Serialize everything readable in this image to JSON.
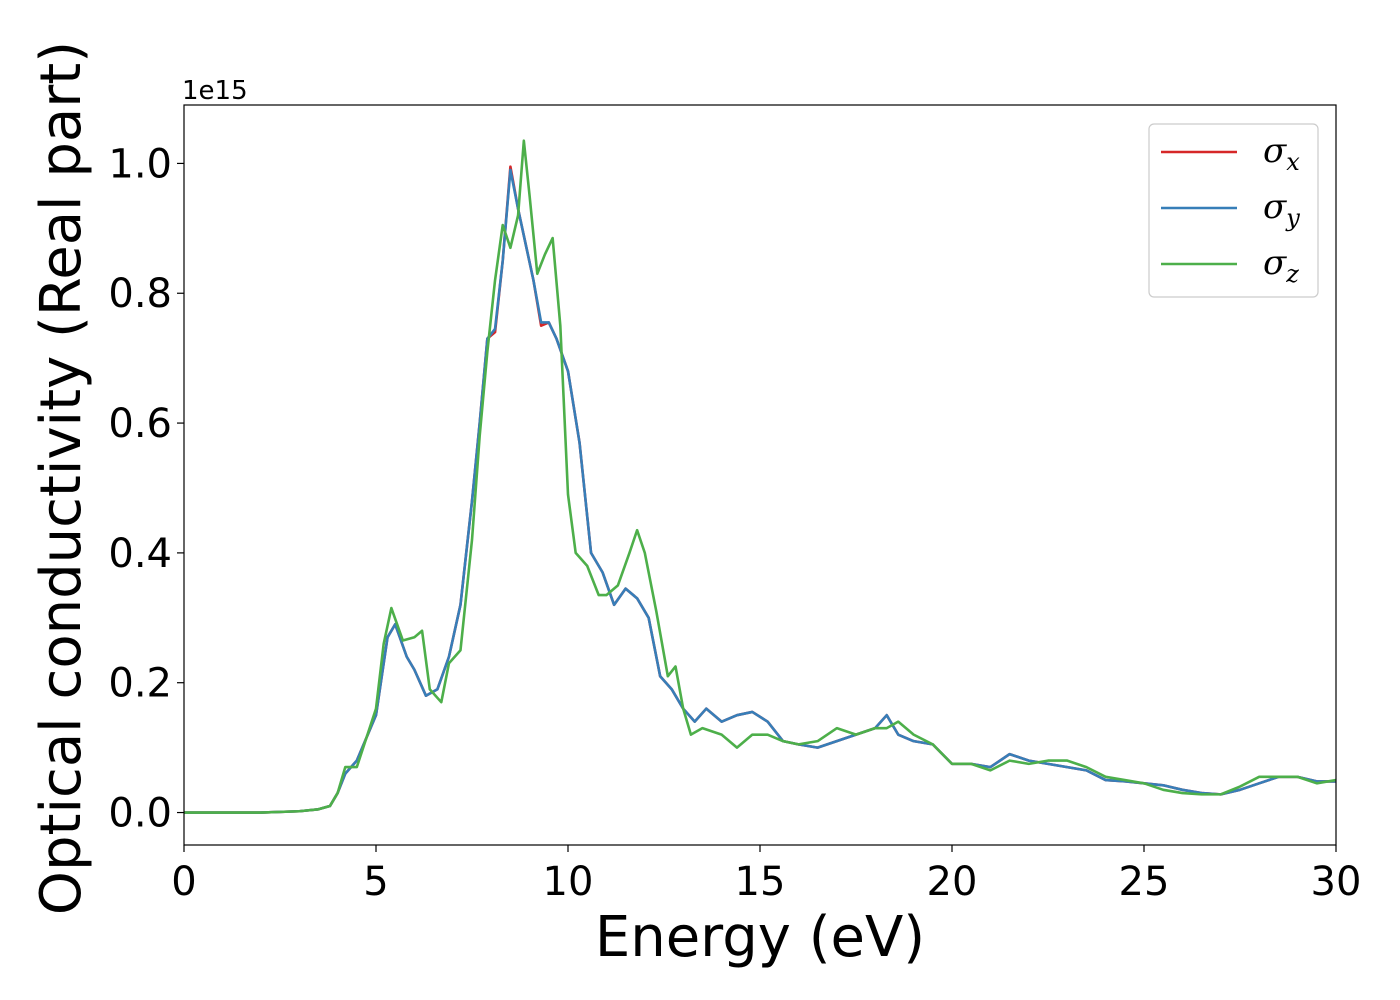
{
  "chart_data": {
    "type": "line",
    "title": "",
    "xlabel": "Energy (eV)",
    "ylabel": "Optical conductivity (Real part)",
    "xlim": [
      0,
      30
    ],
    "ylim": [
      -0.05,
      1.09
    ],
    "y_offset_label": "1e15",
    "x_ticks": [
      0,
      5,
      10,
      15,
      20,
      25,
      30
    ],
    "x_tick_labels": [
      "0",
      "5",
      "10",
      "15",
      "20",
      "25",
      "30"
    ],
    "y_ticks": [
      0.0,
      0.2,
      0.4,
      0.6,
      0.8,
      1.0
    ],
    "y_tick_labels": [
      "0.0",
      "0.2",
      "0.4",
      "0.6",
      "0.8",
      "1.0"
    ],
    "grid": false,
    "legend_position": "top-right",
    "series": [
      {
        "name": "σx",
        "symbol": "σ",
        "subscript": "x",
        "color": "#d62728",
        "x": [
          0,
          2,
          3,
          3.5,
          3.8,
          4.0,
          4.2,
          4.5,
          5.0,
          5.3,
          5.5,
          5.8,
          6.0,
          6.3,
          6.6,
          6.9,
          7.2,
          7.5,
          7.7,
          7.9,
          8.1,
          8.3,
          8.5,
          8.7,
          8.9,
          9.1,
          9.3,
          9.5,
          9.7,
          10.0,
          10.3,
          10.6,
          10.9,
          11.2,
          11.5,
          11.8,
          12.1,
          12.4,
          12.7,
          13.0,
          13.3,
          13.6,
          14.0,
          14.4,
          14.8,
          15.2,
          15.6,
          16.0,
          16.5,
          17.0,
          17.5,
          18.0,
          18.3,
          18.6,
          19.0,
          19.5,
          20.0,
          20.5,
          21.0,
          21.5,
          22.0,
          22.5,
          23.0,
          23.5,
          24.0,
          24.5,
          25.0,
          25.5,
          26.0,
          26.5,
          27.0,
          27.5,
          28.0,
          28.5,
          29.0,
          29.5,
          30.0
        ],
        "y": [
          0.0,
          0.0,
          0.002,
          0.005,
          0.01,
          0.03,
          0.06,
          0.08,
          0.15,
          0.27,
          0.29,
          0.24,
          0.22,
          0.18,
          0.19,
          0.24,
          0.32,
          0.48,
          0.6,
          0.73,
          0.74,
          0.85,
          0.995,
          0.93,
          0.875,
          0.82,
          0.75,
          0.755,
          0.73,
          0.68,
          0.57,
          0.4,
          0.37,
          0.32,
          0.345,
          0.33,
          0.3,
          0.21,
          0.19,
          0.16,
          0.14,
          0.16,
          0.14,
          0.15,
          0.155,
          0.14,
          0.11,
          0.105,
          0.1,
          0.11,
          0.12,
          0.13,
          0.15,
          0.12,
          0.11,
          0.105,
          0.075,
          0.075,
          0.07,
          0.09,
          0.08,
          0.075,
          0.07,
          0.065,
          0.05,
          0.048,
          0.045,
          0.042,
          0.035,
          0.03,
          0.028,
          0.035,
          0.045,
          0.055,
          0.055,
          0.048,
          0.048
        ]
      },
      {
        "name": "σy",
        "symbol": "σ",
        "subscript": "y",
        "color": "#377eb8",
        "x": [
          0,
          2,
          3,
          3.5,
          3.8,
          4.0,
          4.2,
          4.5,
          5.0,
          5.3,
          5.5,
          5.8,
          6.0,
          6.3,
          6.6,
          6.9,
          7.2,
          7.5,
          7.7,
          7.9,
          8.1,
          8.3,
          8.5,
          8.7,
          8.9,
          9.1,
          9.3,
          9.5,
          9.7,
          10.0,
          10.3,
          10.6,
          10.9,
          11.2,
          11.5,
          11.8,
          12.1,
          12.4,
          12.7,
          13.0,
          13.3,
          13.6,
          14.0,
          14.4,
          14.8,
          15.2,
          15.6,
          16.0,
          16.5,
          17.0,
          17.5,
          18.0,
          18.3,
          18.6,
          19.0,
          19.5,
          20.0,
          20.5,
          21.0,
          21.5,
          22.0,
          22.5,
          23.0,
          23.5,
          24.0,
          24.5,
          25.0,
          25.5,
          26.0,
          26.5,
          27.0,
          27.5,
          28.0,
          28.5,
          29.0,
          29.5,
          30.0
        ],
        "y": [
          0.0,
          0.0,
          0.002,
          0.005,
          0.01,
          0.03,
          0.06,
          0.08,
          0.15,
          0.27,
          0.29,
          0.24,
          0.22,
          0.18,
          0.19,
          0.24,
          0.32,
          0.48,
          0.6,
          0.73,
          0.745,
          0.85,
          0.99,
          0.93,
          0.875,
          0.82,
          0.755,
          0.755,
          0.73,
          0.68,
          0.57,
          0.4,
          0.37,
          0.32,
          0.345,
          0.33,
          0.3,
          0.21,
          0.19,
          0.16,
          0.14,
          0.16,
          0.14,
          0.15,
          0.155,
          0.14,
          0.11,
          0.105,
          0.1,
          0.11,
          0.12,
          0.13,
          0.15,
          0.12,
          0.11,
          0.105,
          0.075,
          0.075,
          0.07,
          0.09,
          0.08,
          0.075,
          0.07,
          0.065,
          0.05,
          0.048,
          0.045,
          0.042,
          0.035,
          0.03,
          0.028,
          0.035,
          0.045,
          0.055,
          0.055,
          0.048,
          0.048
        ]
      },
      {
        "name": "σz",
        "symbol": "σ",
        "subscript": "z",
        "color": "#4daf4a",
        "x": [
          0,
          2,
          3,
          3.5,
          3.8,
          4.0,
          4.2,
          4.5,
          5.0,
          5.2,
          5.4,
          5.7,
          6.0,
          6.2,
          6.4,
          6.7,
          6.9,
          7.2,
          7.5,
          7.7,
          7.9,
          8.1,
          8.3,
          8.5,
          8.7,
          8.85,
          9.0,
          9.2,
          9.4,
          9.6,
          9.8,
          10.0,
          10.2,
          10.5,
          10.8,
          11.0,
          11.3,
          11.6,
          11.8,
          12.0,
          12.3,
          12.6,
          12.8,
          13.0,
          13.2,
          13.5,
          14.0,
          14.4,
          14.8,
          15.2,
          15.6,
          16.0,
          16.5,
          17.0,
          17.5,
          18.0,
          18.3,
          18.6,
          19.0,
          19.5,
          20.0,
          20.5,
          21.0,
          21.5,
          22.0,
          22.5,
          23.0,
          23.5,
          24.0,
          24.5,
          25.0,
          25.5,
          26.0,
          26.5,
          27.0,
          27.5,
          28.0,
          28.5,
          29.0,
          29.5,
          30.0
        ],
        "y": [
          0.0,
          0.0,
          0.002,
          0.005,
          0.01,
          0.03,
          0.07,
          0.07,
          0.16,
          0.26,
          0.315,
          0.265,
          0.27,
          0.28,
          0.19,
          0.17,
          0.23,
          0.25,
          0.42,
          0.58,
          0.71,
          0.82,
          0.905,
          0.87,
          0.92,
          1.035,
          0.95,
          0.83,
          0.86,
          0.885,
          0.75,
          0.49,
          0.4,
          0.38,
          0.335,
          0.335,
          0.35,
          0.4,
          0.435,
          0.4,
          0.31,
          0.21,
          0.225,
          0.16,
          0.12,
          0.13,
          0.12,
          0.1,
          0.12,
          0.12,
          0.11,
          0.105,
          0.11,
          0.13,
          0.12,
          0.13,
          0.13,
          0.14,
          0.12,
          0.105,
          0.075,
          0.075,
          0.065,
          0.08,
          0.075,
          0.08,
          0.08,
          0.07,
          0.055,
          0.05,
          0.045,
          0.035,
          0.03,
          0.028,
          0.028,
          0.04,
          0.055,
          0.055,
          0.055,
          0.045,
          0.05
        ]
      }
    ]
  }
}
